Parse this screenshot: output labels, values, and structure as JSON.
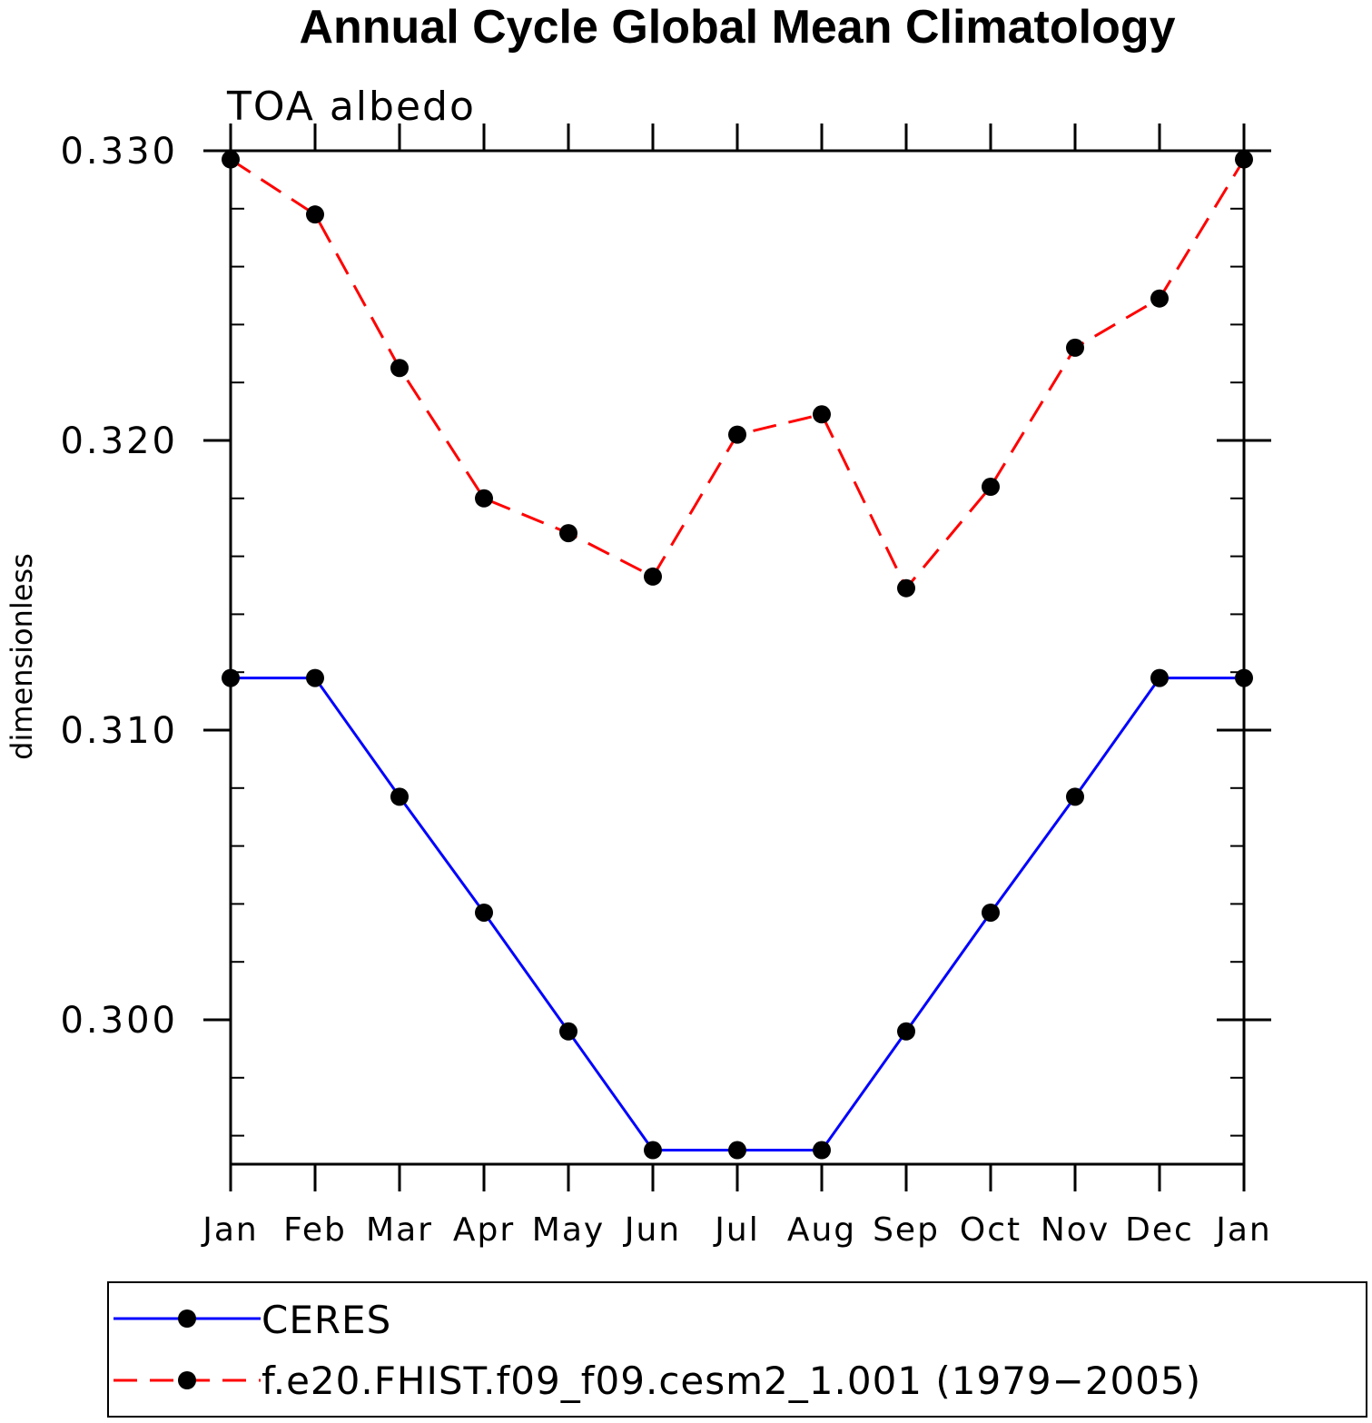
{
  "chart_data": {
    "type": "line",
    "title": "Annual Cycle Global Mean Climatology",
    "subtitle": "TOA albedo",
    "xlabel": "",
    "ylabel": "dimensionless",
    "categories": [
      "Jan",
      "Feb",
      "Mar",
      "Apr",
      "May",
      "Jun",
      "Jul",
      "Aug",
      "Sep",
      "Oct",
      "Nov",
      "Dec",
      "Jan"
    ],
    "yticks": [
      "0.300",
      "0.310",
      "0.320",
      "0.330"
    ],
    "ylim": [
      0.295,
      0.33
    ],
    "grid": false,
    "legend_position": "bottom",
    "series": [
      {
        "name": "CERES",
        "color": "#0000ff",
        "line_style": "solid",
        "values": [
          0.3118,
          0.3118,
          0.3077,
          0.3037,
          0.2996,
          0.2955,
          0.2955,
          0.2955,
          0.2996,
          0.3037,
          0.3077,
          0.3118,
          0.3118
        ]
      },
      {
        "name": "f.e20.FHIST.f09_f09.cesm2_1.001 (1979−2005)",
        "color": "#ff0000",
        "line_style": "dashed",
        "values": [
          0.3297,
          0.3278,
          0.3225,
          0.318,
          0.3168,
          0.3153,
          0.3202,
          0.3209,
          0.3149,
          0.3184,
          0.3232,
          0.3249,
          0.3297
        ]
      }
    ]
  }
}
